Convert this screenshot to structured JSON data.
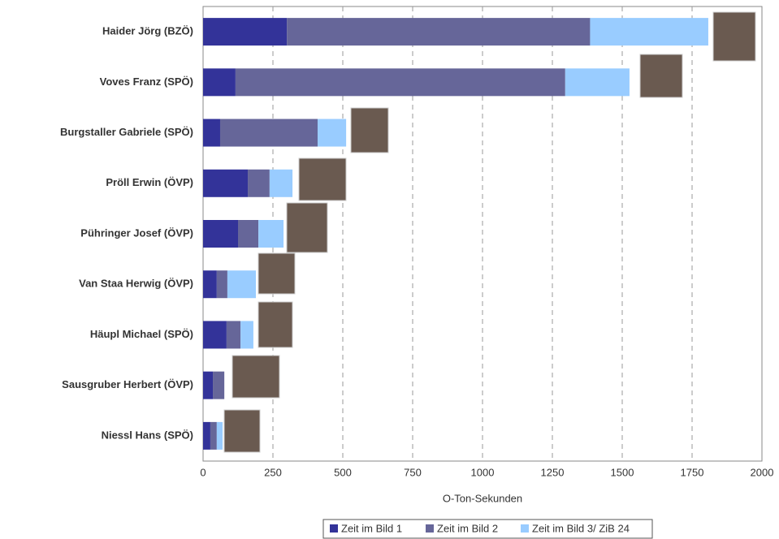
{
  "chart_data": {
    "type": "bar",
    "orientation": "horizontal",
    "stacked": true,
    "x_label": "O-Ton-Sekunden",
    "categories": [
      "Haider Jörg (BZÖ)",
      "Voves Franz (SPÖ)",
      "Burgstaller Gabriele (SPÖ)",
      "Pröll Erwin (ÖVP)",
      "Pühringer Josef (ÖVP)",
      "Van Staa Herwig (ÖVP)",
      "Häupl Michael (SPÖ)",
      "Sausgruber Herbert (ÖVP)",
      "Niessl Hans (SPÖ)"
    ],
    "series": [
      {
        "name": "Zeit im Bild 1",
        "color": "#333399",
        "values": [
          300,
          116,
          61,
          160,
          125,
          49,
          84,
          35,
          26
        ]
      },
      {
        "name": "Zeit im Bild 2",
        "color": "#666699",
        "values": [
          1085,
          1180,
          349,
          78,
          73,
          38,
          50,
          41,
          23
        ]
      },
      {
        "name": "Zeit im Bild 3/ ZiB 24",
        "color": "#99ccff",
        "values": [
          423,
          230,
          102,
          82,
          90,
          102,
          46,
          0,
          21
        ]
      }
    ],
    "xlim": [
      0,
      2000
    ],
    "xticks": [
      0,
      250,
      500,
      750,
      1000,
      1250,
      1500,
      1750,
      2000
    ],
    "grid": true,
    "legend": "bottom"
  }
}
